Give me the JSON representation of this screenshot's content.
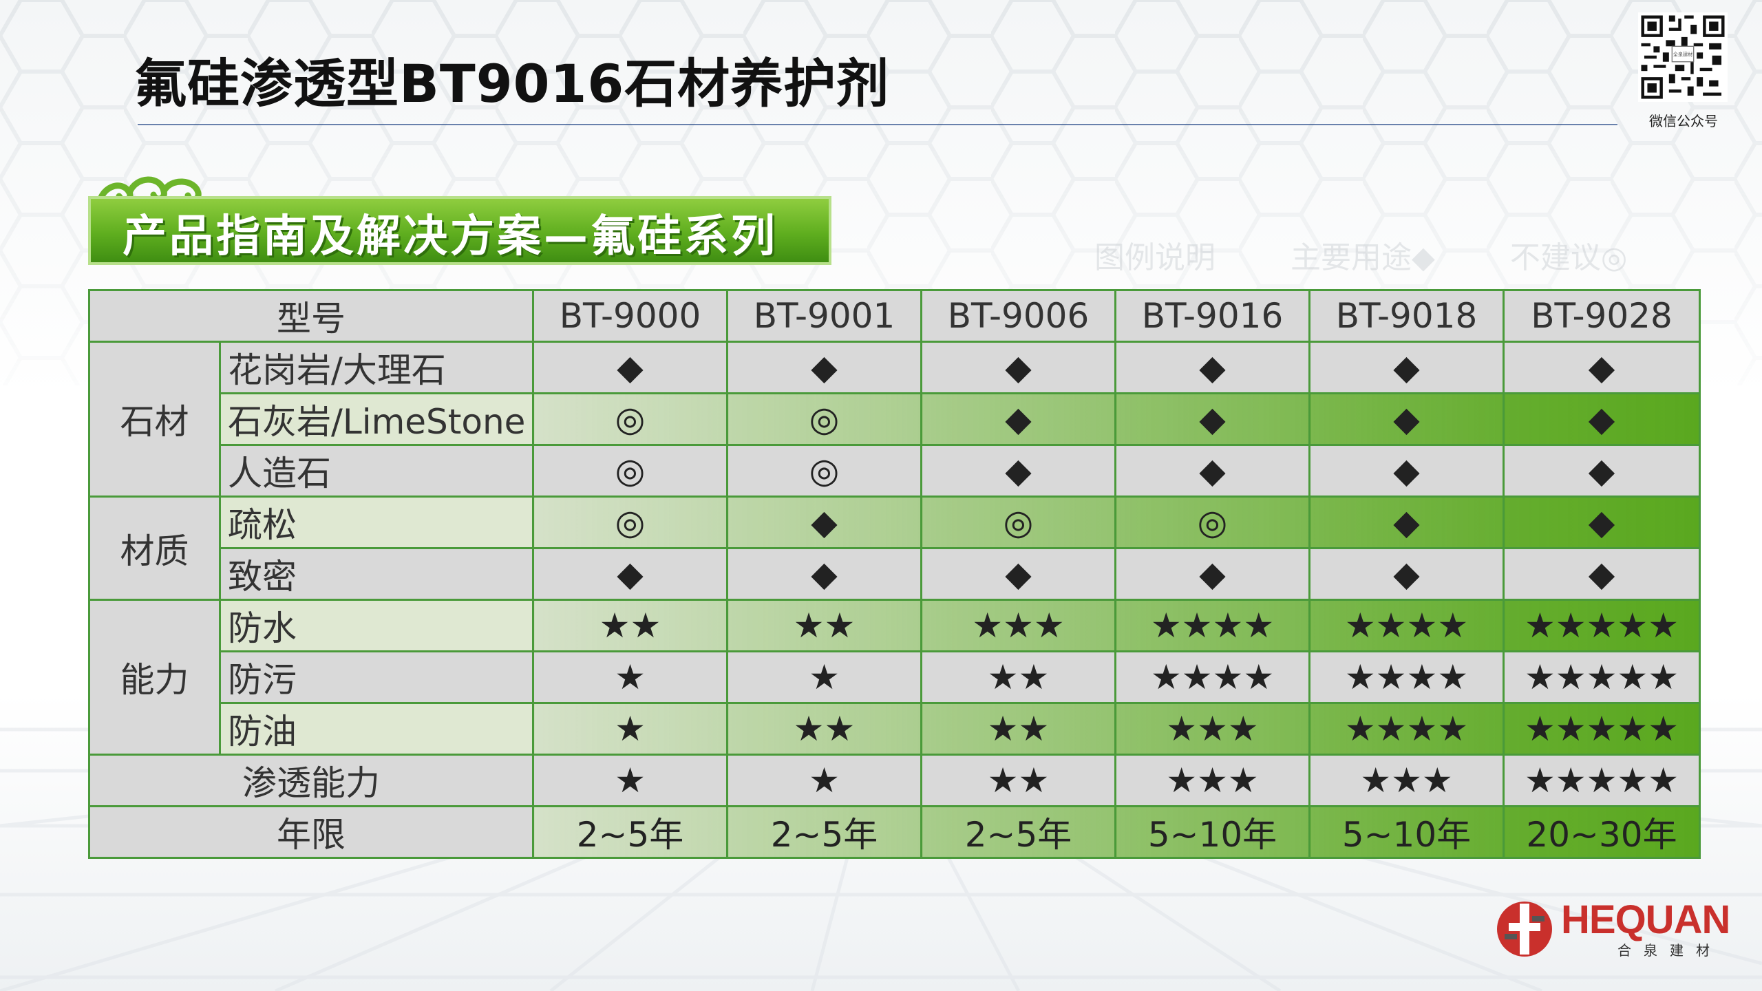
{
  "title": "氟硅渗透型BT9016石材养护剂",
  "qr_caption": "微信公众号",
  "qr_tiny_text": "全泉建材",
  "banner_text": "产品指南及解决方案—氟硅系列",
  "legend": [
    "图例说明",
    "主要用途◆",
    "不建议◎"
  ],
  "brand": {
    "name": "HEQUAN",
    "sub": "合泉建材",
    "color": "#c9302c"
  },
  "colors": {
    "green_dark": "#5aa81f",
    "green_light": "#e4f2c8",
    "grey": "#d9d9d9",
    "border": "#4a9a3a"
  },
  "table": {
    "header_label": "型号",
    "models": [
      "BT-9000",
      "BT-9001",
      "BT-9006",
      "BT-9016",
      "BT-9018",
      "BT-9028"
    ],
    "groups": [
      {
        "name": "石材",
        "rows": [
          {
            "label": "花岗岩/大理石",
            "green": false,
            "values": [
              "◆",
              "◆",
              "◆",
              "◆",
              "◆",
              "◆"
            ]
          },
          {
            "label": "石灰岩/LimeStone",
            "green": true,
            "values": [
              "◎",
              "◎",
              "◆",
              "◆",
              "◆",
              "◆"
            ]
          },
          {
            "label": "人造石",
            "green": false,
            "values": [
              "◎",
              "◎",
              "◆",
              "◆",
              "◆",
              "◆"
            ]
          }
        ]
      },
      {
        "name": "材质",
        "rows": [
          {
            "label": "疏松",
            "green": true,
            "values": [
              "◎",
              "◆",
              "◎",
              "◎",
              "◆",
              "◆"
            ]
          },
          {
            "label": "致密",
            "green": false,
            "values": [
              "◆",
              "◆",
              "◆",
              "◆",
              "◆",
              "◆"
            ]
          }
        ]
      },
      {
        "name": "能力",
        "rows": [
          {
            "label": "防水",
            "green": true,
            "values": [
              "★★",
              "★★",
              "★★★",
              "★★★★",
              "★★★★",
              "★★★★★"
            ]
          },
          {
            "label": "防污",
            "green": false,
            "values": [
              "★",
              "★",
              "★★",
              "★★★★",
              "★★★★",
              "★★★★★"
            ]
          },
          {
            "label": "防油",
            "green": true,
            "values": [
              "★",
              "★★",
              "★★",
              "★★★",
              "★★★★",
              "★★★★★"
            ]
          }
        ]
      }
    ],
    "full_rows": [
      {
        "label": "渗透能力",
        "green": false,
        "values": [
          "★",
          "★",
          "★★",
          "★★★",
          "★★★",
          "★★★★★"
        ]
      },
      {
        "label": "年限",
        "green": true,
        "values": [
          "2~5年",
          "2~5年",
          "2~5年",
          "5~10年",
          "5~10年",
          "20~30年"
        ]
      }
    ]
  }
}
